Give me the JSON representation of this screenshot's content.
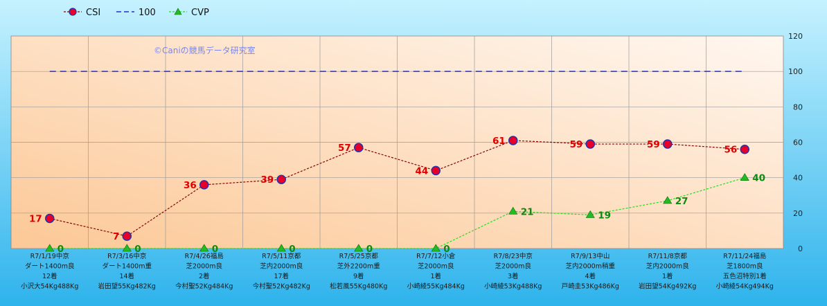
{
  "watermark": "©Caniの競馬データ研究室",
  "legend": [
    {
      "label": "CSI",
      "kind": "csi"
    },
    {
      "label": "100",
      "kind": "ref"
    },
    {
      "label": "CVP",
      "kind": "cvp"
    }
  ],
  "colors": {
    "csi_line": "#8B0000",
    "csi_marker": "#E8002A",
    "csi_marker_edge": "#2233AA",
    "csi_label": "#E00000",
    "ref_line": "#1F2FD0",
    "cvp_line": "#22DD22",
    "cvp_marker": "#22BB22",
    "cvp_label": "#118811",
    "outer_bg_top": "#C6F2FF",
    "outer_bg_bottom": "#2EB3EC",
    "plot_bg_light": "#FFF7F0",
    "plot_bg_dark": "#FCC896"
  },
  "chart_data": {
    "type": "line",
    "ylim": [
      0,
      120
    ],
    "yticks": [
      "0",
      "20",
      "40",
      "60",
      "80",
      "100",
      "120"
    ],
    "grid": true,
    "legend_position": "top-left",
    "categories": [
      [
        "R7/1/19中京",
        "ダート1400m良",
        "12着",
        "小沢大54Kg488Kg"
      ],
      [
        "R7/3/16中京",
        "ダート1400m重",
        "14着",
        "岩田望55Kg482Kg"
      ],
      [
        "R7/4/26福島",
        "芝2000m良",
        "2着",
        "今村聖52Kg484Kg"
      ],
      [
        "R7/5/11京都",
        "芝内2000m良",
        "17着",
        "今村聖52Kg482Kg"
      ],
      [
        "R7/5/25京都",
        "芝外2200m重",
        "9着",
        "松若風55Kg480Kg"
      ],
      [
        "R7/7/12小倉",
        "芝2000m良",
        "1着",
        "小崎綾55Kg484Kg"
      ],
      [
        "R7/8/23中京",
        "芝2000m良",
        "3着",
        "小崎綾53Kg488Kg"
      ],
      [
        "R7/9/13中山",
        "芝内2000m稍重",
        "4着",
        "戸崎圭53Kg486Kg"
      ],
      [
        "R7/11/8京都",
        "芝内2000m良",
        "1着",
        "岩田望54Kg492Kg"
      ],
      [
        "R7/11/24福島",
        "芝1800m良",
        "五色沼特別1着",
        "小崎綾54Kg494Kg"
      ]
    ],
    "series": [
      {
        "name": "CSI",
        "values": [
          17,
          7,
          36,
          39,
          57,
          44,
          61,
          59,
          59,
          56
        ]
      },
      {
        "name": "100",
        "values": [
          100,
          100,
          100,
          100,
          100,
          100,
          100,
          100,
          100,
          100
        ]
      },
      {
        "name": "CVP",
        "values": [
          0,
          0,
          0,
          0,
          0,
          0,
          21,
          19,
          27,
          40
        ]
      }
    ]
  }
}
